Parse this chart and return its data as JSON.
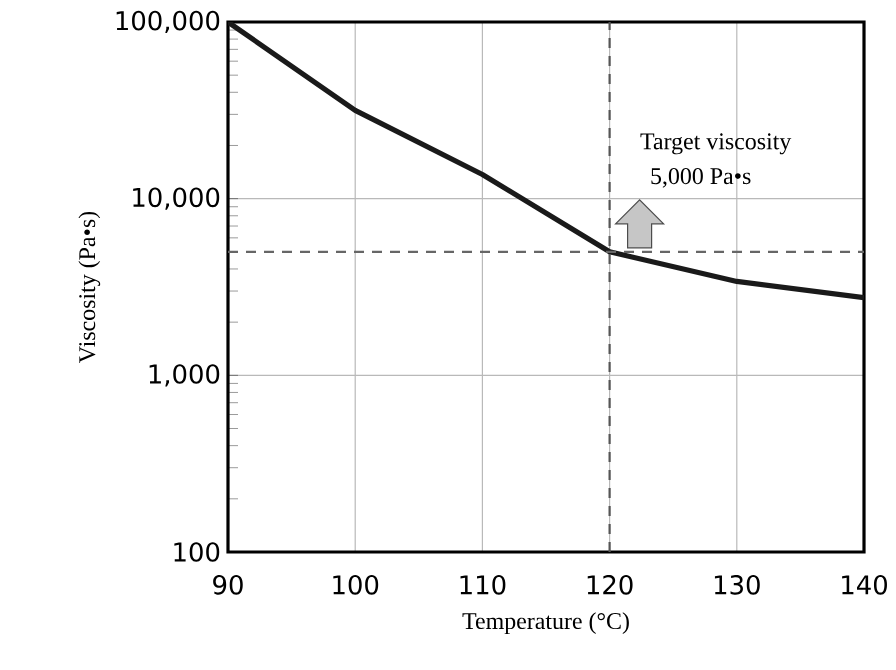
{
  "chart_data": {
    "type": "line",
    "xlabel": "Temperature (°C)",
    "ylabel": "Viscosity (Pa•s)",
    "x": [
      90,
      100,
      110,
      120,
      130,
      140
    ],
    "series": [
      {
        "color": "#1a1a1a",
        "values": [
          100000,
          31600,
          13700,
          5000,
          3400,
          2750
        ]
      }
    ],
    "log": "y",
    "xlim": [
      90,
      140
    ],
    "xticks": [
      90,
      100,
      110,
      120,
      130,
      140
    ],
    "ylim": [
      100,
      100000
    ],
    "yticks": [
      100,
      {
        "value": 1000,
        "label": "1,000"
      },
      {
        "value": 10000,
        "label": "10,000"
      },
      {
        "value": 100000,
        "label": "100,000"
      }
    ],
    "grid": true,
    "marker": "none",
    "line_style": "solid",
    "ref_lines": [
      {
        "axis": "y",
        "value": 5000,
        "color": "#666666",
        "line_style": "dashed"
      },
      {
        "axis": "x",
        "value": 120,
        "color": "#555555",
        "line_style": "dashed"
      }
    ],
    "annotations": [
      "Target viscosity",
      "5,000 Pa•s"
    ]
  }
}
